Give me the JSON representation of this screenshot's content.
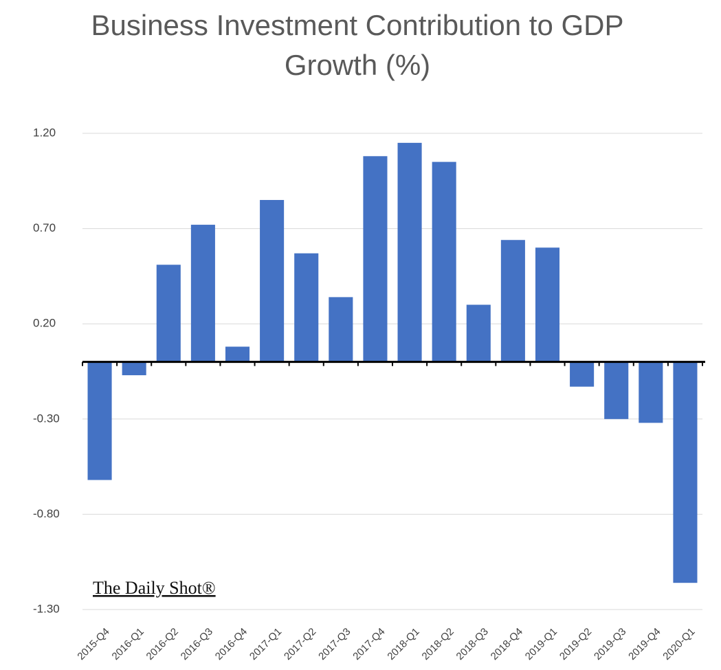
{
  "chart_data": {
    "type": "bar",
    "title": "Business Investment Contribution to GDP Growth (%)",
    "watermark": "The Daily Shot®",
    "categories": [
      "2015-Q4",
      "2016-Q1",
      "2016-Q2",
      "2016-Q3",
      "2016-Q4",
      "2017-Q1",
      "2017-Q2",
      "2017-Q3",
      "2017-Q4",
      "2018-Q1",
      "2018-Q2",
      "2018-Q3",
      "2018-Q4",
      "2019-Q1",
      "2019-Q2",
      "2019-Q3",
      "2019-Q4",
      "2020-Q1"
    ],
    "values": [
      -0.62,
      -0.07,
      0.51,
      0.72,
      0.08,
      0.85,
      0.57,
      0.34,
      1.08,
      1.15,
      1.05,
      0.3,
      0.64,
      0.6,
      -0.13,
      -0.3,
      -0.32,
      -1.16
    ],
    "color": "#4472c4",
    "ylim": [
      -1.3,
      1.2
    ],
    "yticks": [
      {
        "value": -1.3,
        "label": "-1.30"
      },
      {
        "value": -0.8,
        "label": "-0.80"
      },
      {
        "value": -0.3,
        "label": "-0.30"
      },
      {
        "value": 0.2,
        "label": "0.20"
      },
      {
        "value": 0.7,
        "label": "0.70"
      },
      {
        "value": 1.2,
        "label": "1.20"
      }
    ],
    "grid": true
  }
}
